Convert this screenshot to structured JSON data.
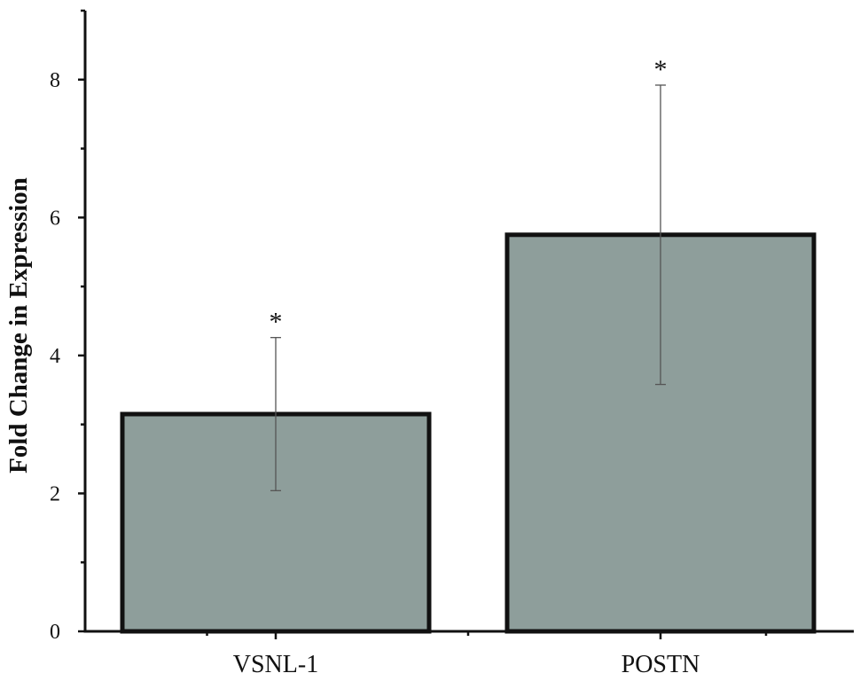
{
  "chart_data": {
    "type": "bar",
    "categories": [
      "VSNL-1",
      "POSTN"
    ],
    "values": [
      3.15,
      5.75
    ],
    "error_upper": [
      4.26,
      7.92
    ],
    "error_lower": [
      2.04,
      3.58
    ],
    "significance": [
      "*",
      "*"
    ],
    "ylabel": "Fold Change in Expression",
    "xlabel": "",
    "ylim": [
      0,
      9
    ],
    "yticks": [
      0,
      2,
      4,
      6,
      8
    ],
    "ytick_labels": [
      "0",
      "2",
      "4",
      "6",
      "8"
    ],
    "grid": false,
    "colors": {
      "bar_fill": "#8e9e9b",
      "bar_stroke": "#111111",
      "axis": "#111111",
      "error_bar": "#555555"
    }
  }
}
